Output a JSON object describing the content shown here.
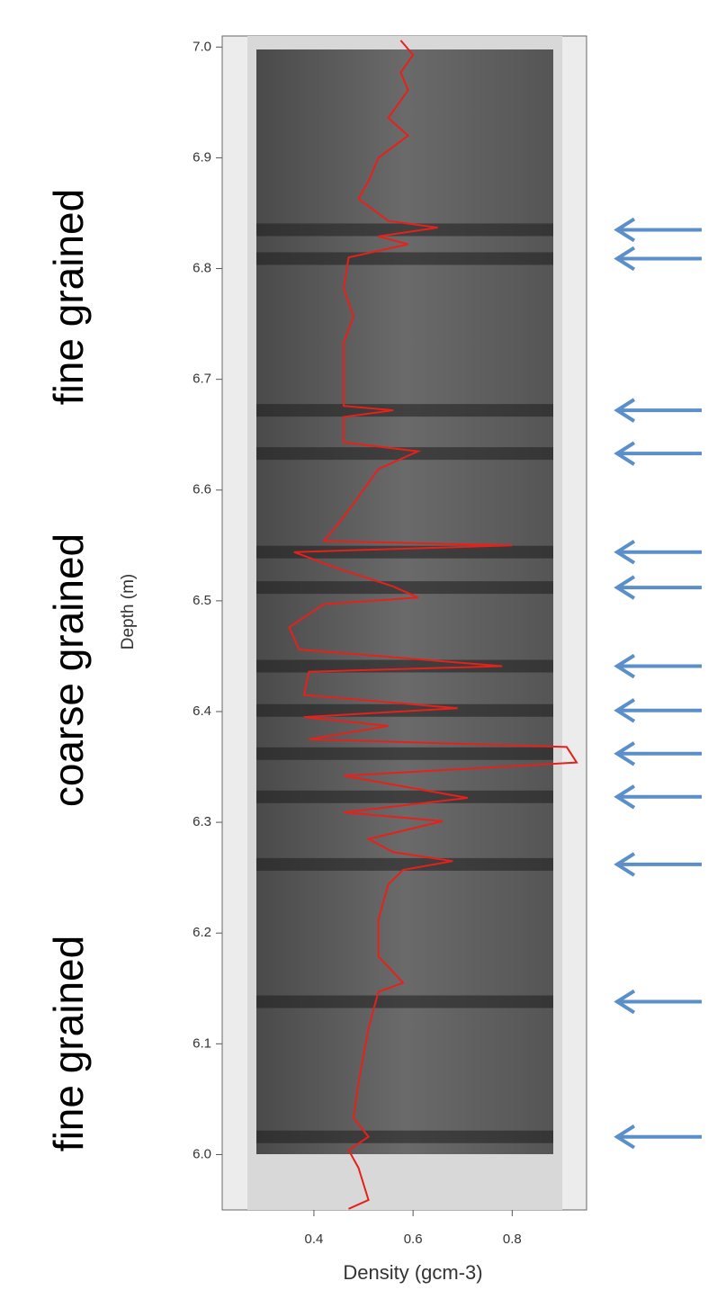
{
  "chart_data": {
    "type": "line",
    "ylabel": "Depth (m)",
    "xlabel": "Density (gcm-3)",
    "annotations": [
      "fine grained",
      "coarse grained",
      "fine grained"
    ],
    "ylim": [
      5.95,
      7.01
    ],
    "yticks": [
      {
        "value": 6.0,
        "label": "6.0"
      },
      6.1,
      6.2,
      6.3,
      6.4,
      6.5,
      6.6,
      6.7,
      6.8,
      6.9,
      {
        "value": 7.0,
        "label": "7.0"
      }
    ],
    "xlim": [
      0.215,
      0.95
    ],
    "xticks": [
      0.4,
      0.6,
      0.8
    ],
    "color": "#e8201a",
    "x": [
      0.575,
      0.6,
      0.575,
      0.59,
      0.55,
      0.59,
      0.53,
      0.51,
      0.49,
      0.55,
      0.65,
      0.53,
      0.59,
      0.47,
      0.46,
      0.48,
      0.46,
      0.46,
      0.46,
      0.56,
      0.46,
      0.46,
      0.61,
      0.53,
      0.49,
      0.45,
      0.42,
      0.8,
      0.36,
      0.45,
      0.56,
      0.61,
      0.42,
      0.35,
      0.37,
      0.78,
      0.39,
      0.38,
      0.69,
      0.38,
      0.55,
      0.39,
      0.91,
      0.93,
      0.46,
      0.71,
      0.46,
      0.66,
      0.51,
      0.56,
      0.68,
      0.58,
      0.55,
      0.53,
      0.53,
      0.58,
      0.53,
      0.51,
      0.49,
      0.48,
      0.51,
      0.47,
      0.49,
      0.51,
      0.47
    ],
    "y": [
      7.006,
      6.993,
      6.977,
      6.961,
      6.936,
      6.92,
      6.9,
      6.879,
      6.863,
      6.843,
      6.837,
      6.829,
      6.822,
      6.81,
      6.782,
      6.757,
      6.733,
      6.7,
      6.676,
      6.672,
      6.666,
      6.643,
      6.635,
      6.619,
      6.594,
      6.57,
      6.554,
      6.55,
      6.544,
      6.529,
      6.513,
      6.503,
      6.497,
      6.476,
      6.456,
      6.441,
      6.436,
      6.415,
      6.403,
      6.395,
      6.387,
      6.375,
      6.368,
      6.354,
      6.342,
      6.322,
      6.309,
      6.301,
      6.285,
      6.273,
      6.265,
      6.257,
      6.244,
      6.212,
      6.179,
      6.155,
      6.147,
      6.114,
      6.065,
      6.033,
      6.016,
      6.004,
      5.988,
      5.959,
      5.951
    ],
    "arrow_color": "#5b8fc9",
    "arrow_depths": [
      6.835,
      6.809,
      6.672,
      6.633,
      6.544,
      6.512,
      6.441,
      6.401,
      6.362,
      6.323,
      6.262,
      6.138,
      6.016
    ]
  }
}
